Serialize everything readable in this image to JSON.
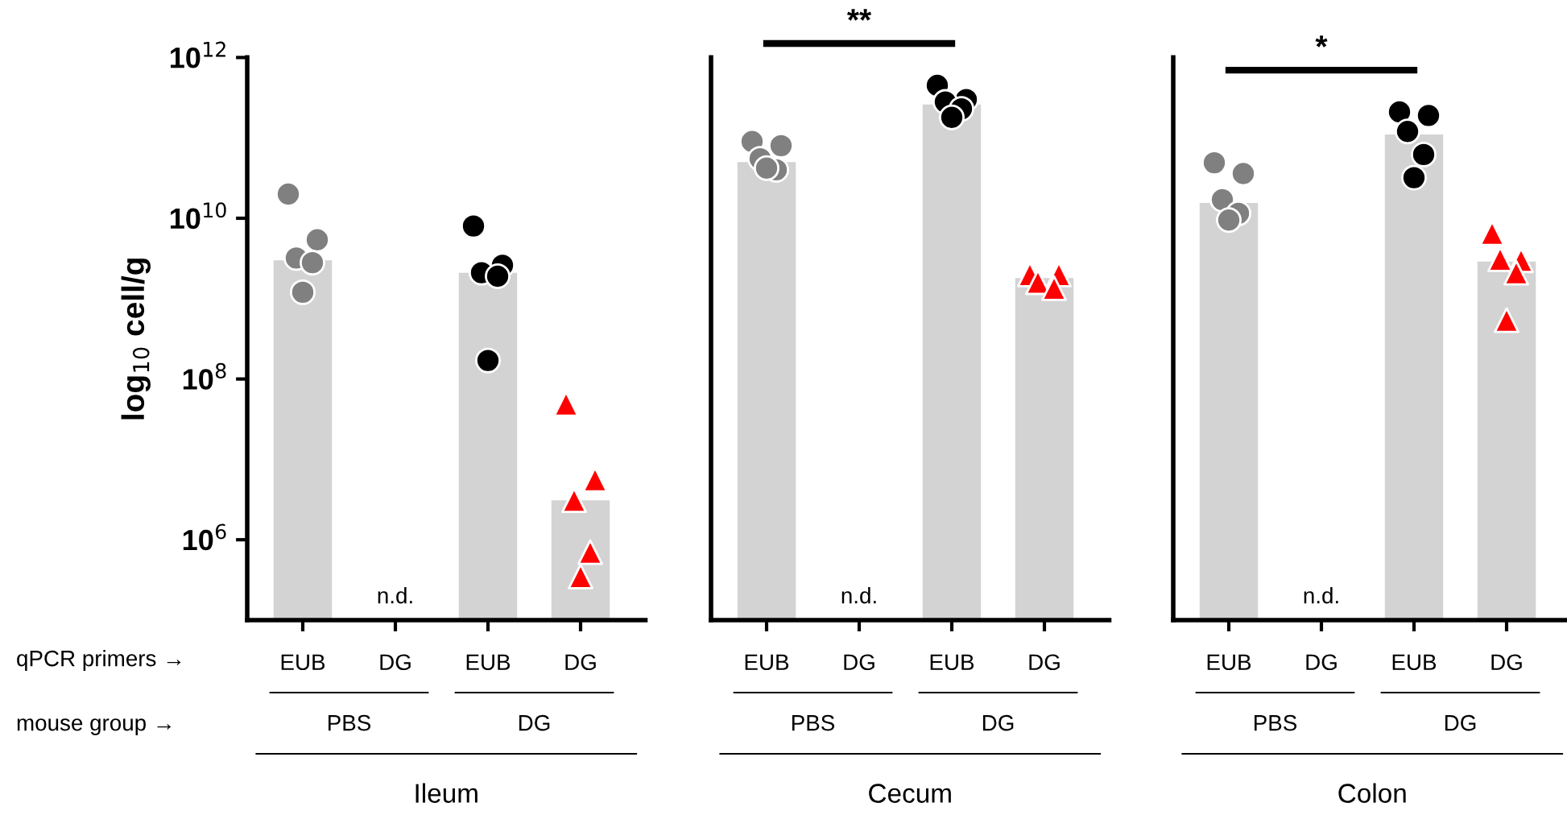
{
  "chart_data": [
    {
      "type": "bar",
      "categories": [
        "EUB",
        "DG",
        "EUB",
        "DG"
      ],
      "xlabel": "Ileum",
      "ylabel": "log$_{10}$ cell/g",
      "log": true,
      "ylim": [
        100000.0,
        1000000000000.0
      ],
      "yticks": [
        {
          "value": 1000000.0,
          "label": "10$^{6}$"
        },
        {
          "value": 100000000.0,
          "label": "10$^{8}$"
        },
        {
          "value": 10000000000.0,
          "label": "10$^{10}$"
        },
        {
          "value": 1000000000000.0,
          "label": "10$^{12}$"
        }
      ],
      "series": [
        {
          "color": "#d3d3d3",
          "values": [
            3000000000.0,
            null,
            2100000000.0,
            3100000.0
          ]
        },
        {
          "type": "scatter",
          "marker": "circle",
          "colors": [
            "#808080",
            null,
            "#000000",
            null
          ],
          "values": [
            20000000000.0,
            null,
            8000000000.0,
            null
          ]
        },
        {
          "type": "scatter",
          "marker": "circle",
          "colors": [
            "#808080",
            null,
            "#000000",
            null
          ],
          "values": [
            5400000000.0,
            null,
            2600000000.0,
            null
          ]
        },
        {
          "type": "scatter",
          "marker": "circle",
          "colors": [
            "#808080",
            null,
            "#000000",
            null
          ],
          "values": [
            3200000000.0,
            null,
            2100000000.0,
            null
          ]
        },
        {
          "type": "scatter",
          "marker": "circle",
          "colors": [
            "#808080",
            null,
            "#000000",
            null
          ],
          "values": [
            2800000000.0,
            null,
            1900000000.0,
            null
          ]
        },
        {
          "type": "scatter",
          "marker": "circle",
          "colors": [
            "#808080",
            null,
            "#000000",
            null
          ],
          "values": [
            1200000000.0,
            null,
            170000000.0,
            null
          ]
        },
        {
          "type": "scatter",
          "marker": "triangle",
          "color": "#ff0000",
          "values": [
            null,
            null,
            null,
            49000000.0
          ]
        },
        {
          "type": "scatter",
          "marker": "triangle",
          "color": "#ff0000",
          "values": [
            null,
            null,
            null,
            5600000.0
          ]
        },
        {
          "type": "scatter",
          "marker": "triangle",
          "color": "#ff0000",
          "values": [
            null,
            null,
            null,
            3100000.0
          ]
        },
        {
          "type": "scatter",
          "marker": "triangle",
          "color": "#ff0000",
          "values": [
            null,
            null,
            null,
            700000.0
          ]
        },
        {
          "type": "scatter",
          "marker": "triangle",
          "color": "#ff0000",
          "values": [
            null,
            null,
            null,
            350000.0
          ]
        }
      ],
      "annotations": [
        "n.d.",
        "PBS",
        "DG",
        "qPCR primers →",
        "mouse group →"
      ]
    },
    {
      "type": "bar",
      "categories": [
        "EUB",
        "DG",
        "EUB",
        "DG"
      ],
      "xlabel": "Cecum",
      "log": true,
      "ylim": [
        100000.0,
        1000000000000.0
      ],
      "tick_labels": "x",
      "series": [
        {
          "color": "#d3d3d3",
          "values": [
            50000000000.0,
            null,
            260000000000.0,
            1800000000.0
          ]
        },
        {
          "type": "scatter",
          "marker": "circle",
          "colors": [
            "#808080",
            null,
            "#000000",
            null
          ],
          "values": [
            90000000000.0,
            null,
            450000000000.0,
            null
          ]
        },
        {
          "type": "scatter",
          "marker": "circle",
          "colors": [
            "#808080",
            null,
            "#000000",
            null
          ],
          "values": [
            80000000000.0,
            null,
            300000000000.0,
            null
          ]
        },
        {
          "type": "scatter",
          "marker": "circle",
          "colors": [
            "#808080",
            null,
            "#000000",
            null
          ],
          "values": [
            55000000000.0,
            null,
            280000000000.0,
            null
          ]
        },
        {
          "type": "scatter",
          "marker": "circle",
          "colors": [
            "#808080",
            null,
            "#000000",
            null
          ],
          "values": [
            40000000000.0,
            null,
            230000000000.0,
            null
          ]
        },
        {
          "type": "scatter",
          "marker": "circle",
          "colors": [
            "#808080",
            null,
            "#000000",
            null
          ],
          "values": [
            42000000000.0,
            null,
            180000000000.0,
            null
          ]
        },
        {
          "type": "scatter",
          "marker": "triangle",
          "color": "#ff0000",
          "values": [
            null,
            null,
            null,
            2000000000.0
          ]
        },
        {
          "type": "scatter",
          "marker": "triangle",
          "color": "#ff0000",
          "values": [
            null,
            null,
            null,
            2000000000.0
          ]
        },
        {
          "type": "scatter",
          "marker": "triangle",
          "color": "#ff0000",
          "values": [
            null,
            null,
            null,
            1600000000.0
          ]
        },
        {
          "type": "scatter",
          "marker": "triangle",
          "color": "#ff0000",
          "values": [
            null,
            null,
            null,
            1350000000.0
          ]
        }
      ],
      "annotations": [
        "n.d.",
        "PBS",
        "DG",
        "**"
      ]
    },
    {
      "type": "bar",
      "categories": [
        "EUB",
        "DG",
        "EUB",
        "DG"
      ],
      "xlabel": "Colon",
      "log": true,
      "ylim": [
        100000.0,
        1000000000000.0
      ],
      "tick_labels": "x",
      "series": [
        {
          "color": "#d3d3d3",
          "values": [
            15500000000.0,
            null,
            110000000000.0,
            2900000000.0
          ]
        },
        {
          "type": "scatter",
          "marker": "circle",
          "colors": [
            "#808080",
            null,
            "#000000",
            null
          ],
          "values": [
            49000000000.0,
            null,
            210000000000.0,
            null
          ]
        },
        {
          "type": "scatter",
          "marker": "circle",
          "colors": [
            "#808080",
            null,
            "#000000",
            null
          ],
          "values": [
            36000000000.0,
            null,
            190000000000.0,
            null
          ]
        },
        {
          "type": "scatter",
          "marker": "circle",
          "colors": [
            "#808080",
            null,
            "#000000",
            null
          ],
          "values": [
            17000000000.0,
            null,
            120000000000.0,
            null
          ]
        },
        {
          "type": "scatter",
          "marker": "circle",
          "colors": [
            "#808080",
            null,
            "#000000",
            null
          ],
          "values": [
            11500000000.0,
            null,
            62000000000.0,
            null
          ]
        },
        {
          "type": "scatter",
          "marker": "circle",
          "colors": [
            "#808080",
            null,
            "#000000",
            null
          ],
          "values": [
            9500000000.0,
            null,
            32000000000.0,
            null
          ]
        },
        {
          "type": "scatter",
          "marker": "triangle",
          "color": "#ff0000",
          "values": [
            null,
            null,
            null,
            6500000000.0
          ]
        },
        {
          "type": "scatter",
          "marker": "triangle",
          "color": "#ff0000",
          "values": [
            null,
            null,
            null,
            3000000000.0
          ]
        },
        {
          "type": "scatter",
          "marker": "triangle",
          "color": "#ff0000",
          "values": [
            null,
            null,
            null,
            3100000000.0
          ]
        },
        {
          "type": "scatter",
          "marker": "triangle",
          "color": "#ff0000",
          "values": [
            null,
            null,
            null,
            2100000000.0
          ]
        },
        {
          "type": "scatter",
          "marker": "triangle",
          "color": "#ff0000",
          "values": [
            null,
            null,
            null,
            540000000.0
          ]
        }
      ],
      "annotations": [
        "n.d.",
        "PBS",
        "DG",
        "*"
      ]
    }
  ]
}
